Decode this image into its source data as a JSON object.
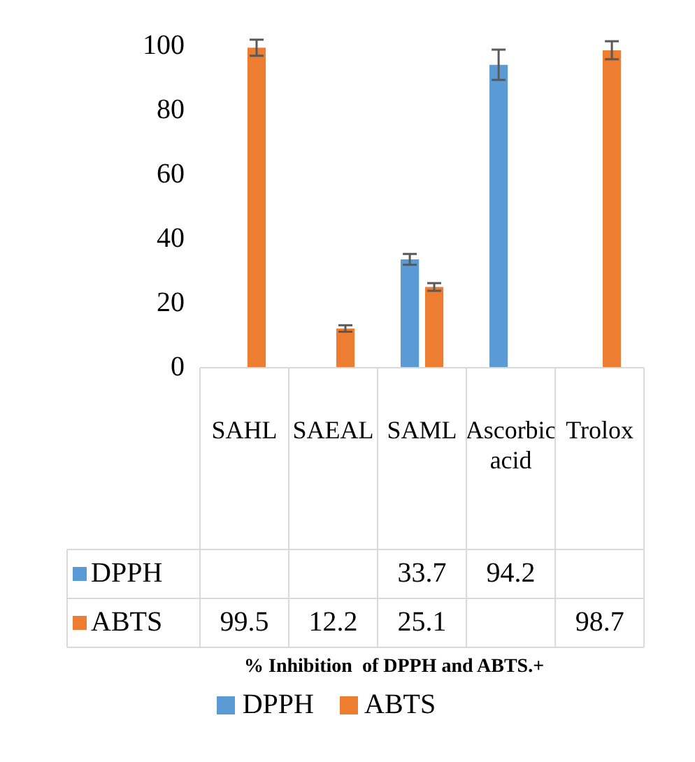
{
  "chart_data": {
    "type": "bar",
    "annotations": [
      "% Inhibition  of DPPH and ABTS.+"
    ],
    "categories": [
      "SAHL",
      "SAEAL",
      "SAML",
      "Ascorbic acid",
      "Trolox"
    ],
    "series": [
      {
        "name": "DPPH",
        "color": "#5b9bd5",
        "values": [
          null,
          null,
          33.7,
          94.2,
          null
        ],
        "errors": [
          null,
          null,
          1.7,
          4.7,
          null
        ]
      },
      {
        "name": "ABTS",
        "color": "#ed7d31",
        "values": [
          99.5,
          12.2,
          25.1,
          null,
          98.7
        ],
        "errors": [
          2.5,
          1,
          1.2,
          null,
          2.8
        ]
      }
    ],
    "ylim": [
      0,
      100
    ],
    "yticks": [
      0,
      20,
      40,
      60,
      80,
      100
    ],
    "grid": false,
    "legend": "bottom",
    "data_labels": true
  }
}
